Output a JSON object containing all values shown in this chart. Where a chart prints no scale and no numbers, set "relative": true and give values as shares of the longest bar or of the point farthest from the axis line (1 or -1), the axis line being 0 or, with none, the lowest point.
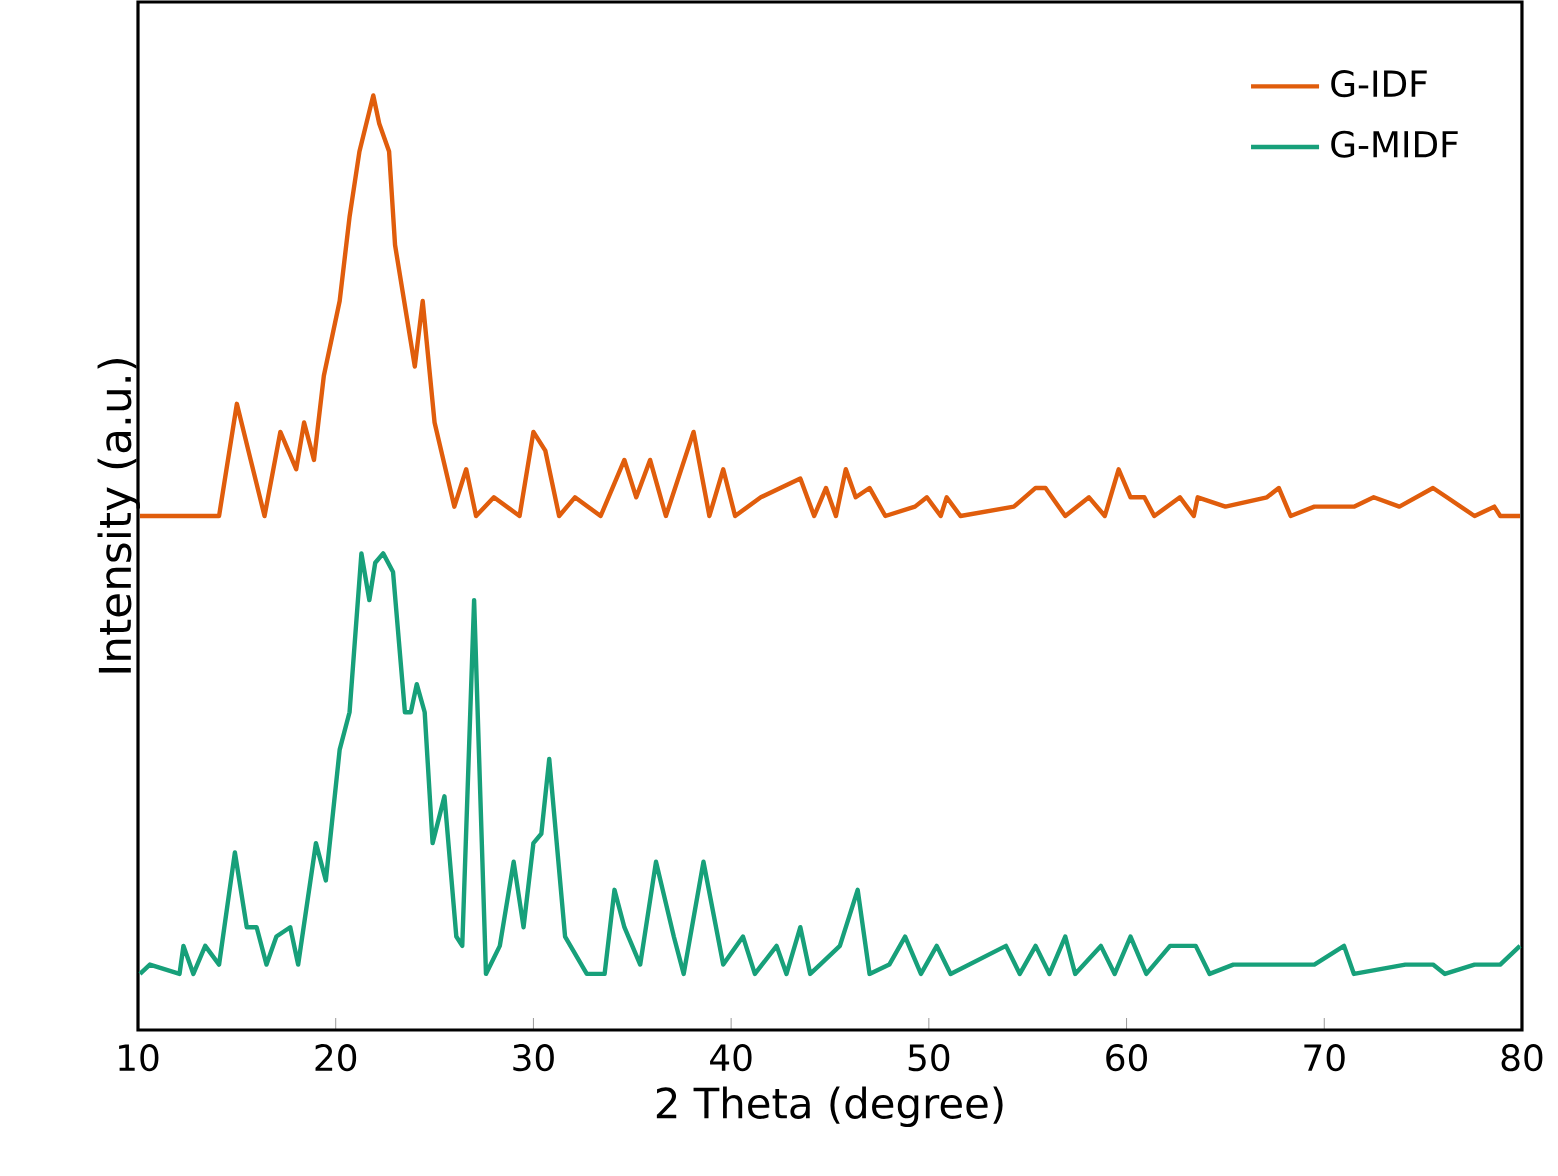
{
  "chart_data": {
    "type": "line",
    "xlabel": "2 Theta (degree)",
    "ylabel": "Intensity (a.u.)",
    "relative": true,
    "xlim": [
      10,
      80
    ],
    "xticks": [
      10,
      20,
      30,
      40,
      50,
      60,
      70,
      80
    ],
    "legend": "top right",
    "grid": false,
    "series": [
      {
        "name": "G-IDF",
        "color": "#e05d0c",
        "x": [
          10.1,
          14.1,
          15.0,
          15.7,
          16.4,
          17.2,
          18.0,
          18.4,
          18.9,
          19.4,
          20.2,
          20.7,
          21.2,
          21.9,
          22.2,
          22.7,
          23.0,
          24.0,
          24.4,
          25.0,
          26.0,
          26.6,
          27.1,
          28.0,
          29.3,
          30.0,
          30.6,
          31.3,
          32.1,
          33.4,
          34.6,
          35.2,
          35.9,
          36.7,
          38.1,
          38.9,
          39.6,
          40.2,
          41.5,
          43.5,
          44.2,
          44.8,
          45.3,
          45.8,
          46.3,
          47.0,
          47.8,
          49.3,
          49.9,
          50.6,
          50.9,
          51.6,
          54.3,
          55.4,
          55.9,
          56.9,
          58.1,
          58.9,
          59.6,
          60.2,
          60.9,
          61.4,
          62.7,
          63.4,
          63.6,
          65.0,
          67.1,
          67.7,
          68.3,
          69.5,
          71.5,
          72.5,
          73.8,
          75.5,
          76.2,
          77.6,
          78.6,
          78.9,
          79.9
        ],
        "values": [
          0.55,
          0.55,
          0.67,
          0.61,
          0.55,
          0.64,
          0.6,
          0.65,
          0.61,
          0.7,
          0.78,
          0.87,
          0.94,
          1.0,
          0.97,
          0.94,
          0.84,
          0.71,
          0.78,
          0.65,
          0.56,
          0.6,
          0.55,
          0.57,
          0.55,
          0.64,
          0.62,
          0.55,
          0.57,
          0.55,
          0.61,
          0.57,
          0.61,
          0.55,
          0.64,
          0.55,
          0.6,
          0.55,
          0.57,
          0.59,
          0.55,
          0.58,
          0.55,
          0.6,
          0.57,
          0.58,
          0.55,
          0.56,
          0.57,
          0.55,
          0.57,
          0.55,
          0.56,
          0.58,
          0.58,
          0.55,
          0.57,
          0.55,
          0.6,
          0.57,
          0.57,
          0.55,
          0.57,
          0.55,
          0.57,
          0.56,
          0.57,
          0.58,
          0.55,
          0.56,
          0.56,
          0.57,
          0.56,
          0.58,
          0.57,
          0.55,
          0.56,
          0.55,
          0.55
        ]
      },
      {
        "name": "G-MIDF",
        "color": "#17a07a",
        "x": [
          10.1,
          10.6,
          12.1,
          12.3,
          12.8,
          13.4,
          14.1,
          14.9,
          15.5,
          16.0,
          16.5,
          17.0,
          17.7,
          18.1,
          19.0,
          19.5,
          20.2,
          20.7,
          21.3,
          21.7,
          22.0,
          22.4,
          22.9,
          23.5,
          23.8,
          24.1,
          24.5,
          24.9,
          25.5,
          26.1,
          26.4,
          27.0,
          27.6,
          28.3,
          29.0,
          29.5,
          30.0,
          30.4,
          30.8,
          31.6,
          32.7,
          33.6,
          34.1,
          34.6,
          35.4,
          36.2,
          37.1,
          37.6,
          38.6,
          39.6,
          40.6,
          41.2,
          42.3,
          42.8,
          43.5,
          44.0,
          44.5,
          45.5,
          46.4,
          47.0,
          48.0,
          48.8,
          49.6,
          50.4,
          51.1,
          53.9,
          54.6,
          55.4,
          56.1,
          56.9,
          57.4,
          58.7,
          59.4,
          60.2,
          61.0,
          62.2,
          63.5,
          64.2,
          65.4,
          67.1,
          69.5,
          71.0,
          71.5,
          74.1,
          75.5,
          76.1,
          77.6,
          78.9,
          79.9
        ],
        "values": [
          0.06,
          0.07,
          0.06,
          0.09,
          0.06,
          0.09,
          0.07,
          0.19,
          0.11,
          0.11,
          0.07,
          0.1,
          0.11,
          0.07,
          0.2,
          0.16,
          0.3,
          0.34,
          0.51,
          0.46,
          0.5,
          0.51,
          0.49,
          0.34,
          0.34,
          0.37,
          0.34,
          0.2,
          0.25,
          0.1,
          0.09,
          0.46,
          0.06,
          0.09,
          0.18,
          0.11,
          0.2,
          0.21,
          0.29,
          0.1,
          0.06,
          0.06,
          0.15,
          0.11,
          0.07,
          0.18,
          0.1,
          0.06,
          0.18,
          0.07,
          0.1,
          0.06,
          0.09,
          0.06,
          0.11,
          0.06,
          0.07,
          0.09,
          0.15,
          0.06,
          0.07,
          0.1,
          0.06,
          0.09,
          0.06,
          0.09,
          0.06,
          0.09,
          0.06,
          0.1,
          0.06,
          0.09,
          0.06,
          0.1,
          0.06,
          0.09,
          0.09,
          0.06,
          0.07,
          0.07,
          0.07,
          0.09,
          0.06,
          0.07,
          0.07,
          0.06,
          0.07,
          0.07,
          0.09
        ]
      }
    ]
  }
}
